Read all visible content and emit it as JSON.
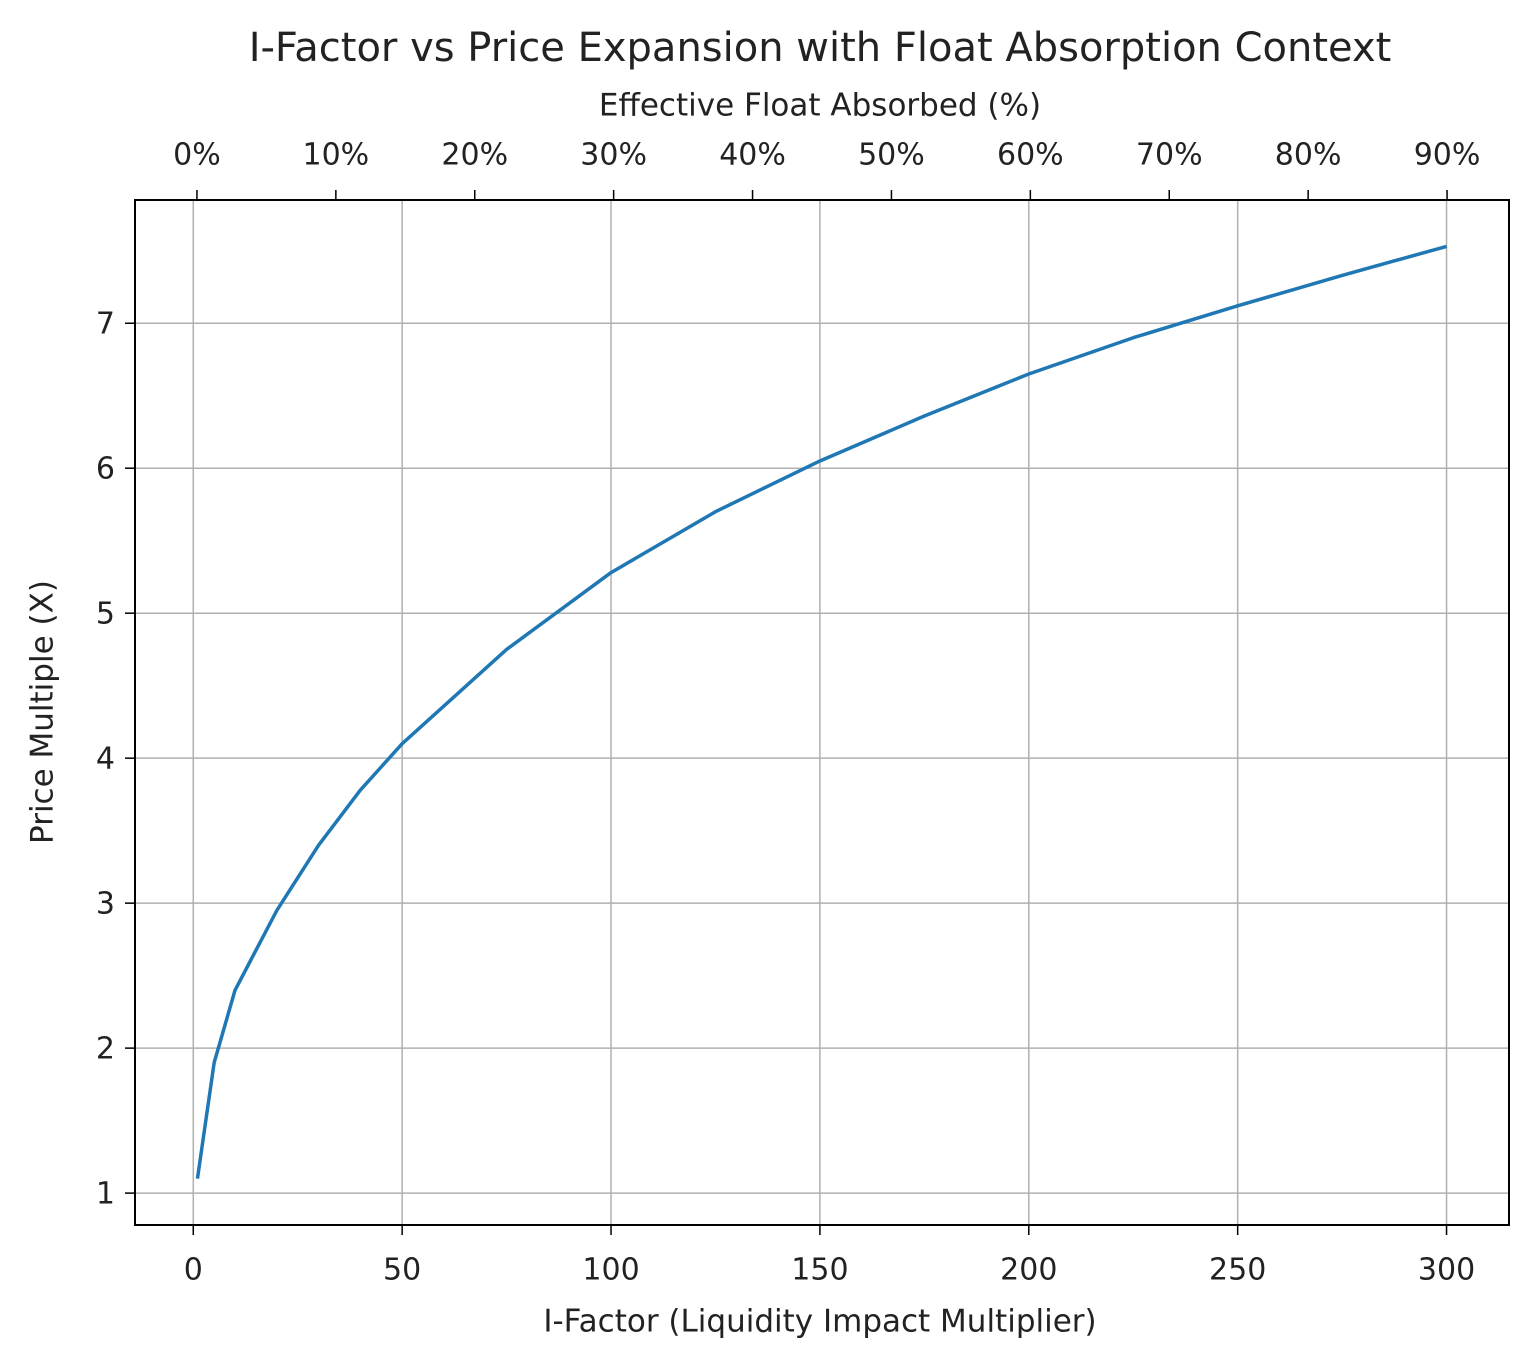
{
  "chart_data": {
    "type": "line",
    "title": "I-Factor vs Price Expansion with Float Absorption Context",
    "xlabel": "I-Factor (Liquidity Impact Multiplier)",
    "ylabel": "Price Multiple (X)",
    "x2label": "Effective Float Absorbed (%)",
    "x": [
      1,
      5,
      10,
      20,
      30,
      40,
      50,
      75,
      100,
      125,
      150,
      175,
      200,
      225,
      250,
      275,
      300
    ],
    "values": [
      1.1,
      1.9,
      2.4,
      2.95,
      3.4,
      3.78,
      4.1,
      4.75,
      5.28,
      5.7,
      6.05,
      6.36,
      6.65,
      6.9,
      7.12,
      7.33,
      7.53
    ],
    "color": "#1f77b4",
    "xlim": [
      -13.95,
      314.95
    ],
    "xticks": [
      0,
      50,
      100,
      150,
      200,
      250,
      300
    ],
    "ylim": [
      0.78,
      7.85
    ],
    "yticks": [
      1,
      2,
      3,
      4,
      5,
      6,
      7
    ],
    "x2lim": [
      -4.46,
      94.46
    ],
    "x2ticks": [
      {
        "value": 0,
        "label": "0%"
      },
      {
        "value": 10,
        "label": "10%"
      },
      {
        "value": 20,
        "label": "20%"
      },
      {
        "value": 30,
        "label": "30%"
      },
      {
        "value": 40,
        "label": "40%"
      },
      {
        "value": 50,
        "label": "50%"
      },
      {
        "value": 60,
        "label": "60%"
      },
      {
        "value": 70,
        "label": "70%"
      },
      {
        "value": 80,
        "label": "80%"
      },
      {
        "value": 90,
        "label": "90%"
      }
    ],
    "grid": true
  }
}
